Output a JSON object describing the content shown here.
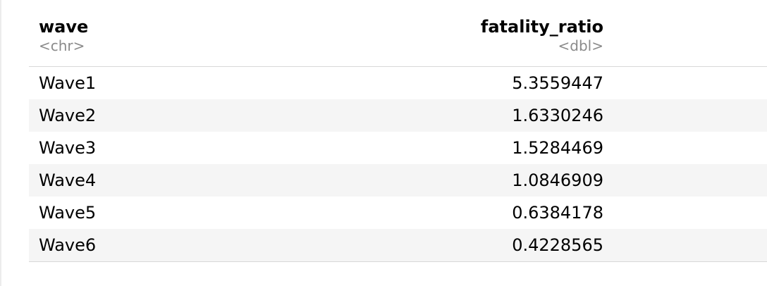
{
  "table": {
    "columns": [
      {
        "name": "wave",
        "type": "<chr>"
      },
      {
        "name": "fatality_ratio",
        "type": "<dbl>"
      }
    ],
    "rows": [
      {
        "wave": "Wave1",
        "fatality_ratio": "5.3559447"
      },
      {
        "wave": "Wave2",
        "fatality_ratio": "1.6330246"
      },
      {
        "wave": "Wave3",
        "fatality_ratio": "1.5284469"
      },
      {
        "wave": "Wave4",
        "fatality_ratio": "1.0846909"
      },
      {
        "wave": "Wave5",
        "fatality_ratio": "0.6384178"
      },
      {
        "wave": "Wave6",
        "fatality_ratio": "0.4228565"
      }
    ]
  }
}
